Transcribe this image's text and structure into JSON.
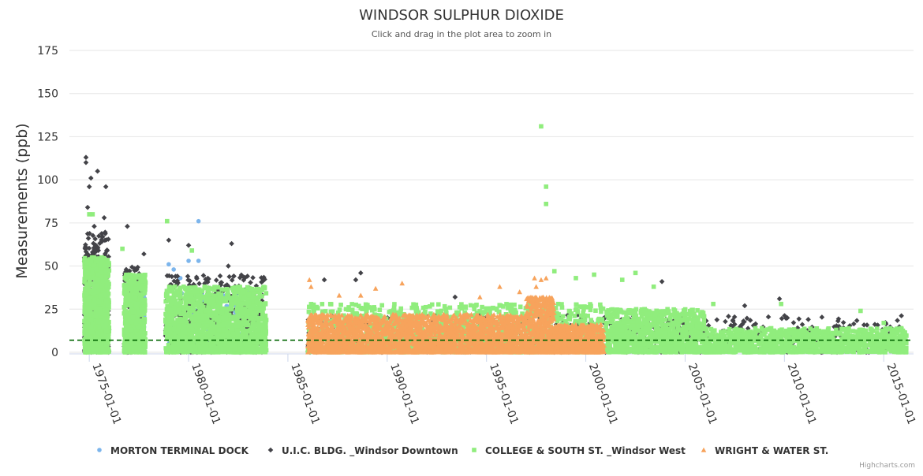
{
  "chart_data": {
    "type": "scatter",
    "title": "WINDSOR SULPHUR DIOXIDE",
    "subtitle": "Click and drag in the plot area to zoom in",
    "ylabel": "Measurements (ppb)",
    "xlabel": "",
    "ylim": [
      0,
      175
    ],
    "yticks": [
      0,
      25,
      50,
      75,
      100,
      125,
      150,
      175
    ],
    "xlim": [
      "1974-01-01",
      "2016-07-01"
    ],
    "xticks": [
      "1975-01-01",
      "1980-01-01",
      "1985-01-01",
      "1990-01-01",
      "1995-01-01",
      "2000-01-01",
      "2005-01-01",
      "2010-01-01",
      "2015-01-01"
    ],
    "grid": true,
    "legend_position": "bottom",
    "reference_line": {
      "value": 7,
      "style": "dashed",
      "color": "#006400"
    },
    "series": [
      {
        "name": "MORTON TERMINAL DOCK",
        "color": "#7cb5ec",
        "marker": "circle",
        "notable_points": [
          {
            "x": "1979-01-01",
            "y": 51
          },
          {
            "x": "1979-04-01",
            "y": 48
          },
          {
            "x": "1979-08-01",
            "y": 43
          },
          {
            "x": "1980-01-01",
            "y": 53
          },
          {
            "x": "1980-07-01",
            "y": 76
          },
          {
            "x": "1980-07-01",
            "y": 53
          },
          {
            "x": "1977-06-01",
            "y": 44
          },
          {
            "x": "1975-08-01",
            "y": 42
          },
          {
            "x": "1982-01-01",
            "y": 30
          },
          {
            "x": "1979-06-01",
            "y": 24
          }
        ],
        "bands": [
          {
            "from": "1977-07-01",
            "to": "1977-11-01",
            "max": 38,
            "density": 60
          },
          {
            "from": "1979-01-01",
            "to": "1983-01-01",
            "max": 36,
            "density": 220
          }
        ]
      },
      {
        "name": "U.I.C. BLDG. _Windsor Downtown",
        "color": "#434348",
        "marker": "diamond",
        "notable_points": [
          {
            "x": "1974-11-01",
            "y": 113
          },
          {
            "x": "1974-11-01",
            "y": 110
          },
          {
            "x": "1975-01-01",
            "y": 96
          },
          {
            "x": "1975-02-01",
            "y": 101
          },
          {
            "x": "1975-06-01",
            "y": 105
          },
          {
            "x": "1975-11-01",
            "y": 96
          },
          {
            "x": "1974-12-01",
            "y": 84
          },
          {
            "x": "1975-10-01",
            "y": 78
          },
          {
            "x": "1975-04-01",
            "y": 73
          },
          {
            "x": "1976-12-01",
            "y": 73
          },
          {
            "x": "1977-10-01",
            "y": 57
          },
          {
            "x": "1979-01-01",
            "y": 65
          },
          {
            "x": "1980-01-01",
            "y": 62
          },
          {
            "x": "1982-03-01",
            "y": 63
          },
          {
            "x": "1982-01-01",
            "y": 50
          },
          {
            "x": "1988-09-01",
            "y": 46
          },
          {
            "x": "1988-06-01",
            "y": 42
          },
          {
            "x": "1986-11-01",
            "y": 42
          },
          {
            "x": "2003-11-01",
            "y": 41
          },
          {
            "x": "1993-06-01",
            "y": 32
          },
          {
            "x": "2009-10-01",
            "y": 31
          },
          {
            "x": "2008-01-01",
            "y": 27
          }
        ],
        "bands": [
          {
            "from": "1974-10-01",
            "to": "1976-01-01",
            "max": 70,
            "density": 300
          },
          {
            "from": "1976-10-01",
            "to": "1977-10-01",
            "max": 50,
            "density": 150
          },
          {
            "from": "1978-11-01",
            "to": "1983-12-01",
            "max": 45,
            "density": 450
          },
          {
            "from": "1986-01-01",
            "to": "2015-12-01",
            "max": 22,
            "density": 700
          }
        ]
      },
      {
        "name": "COLLEGE & SOUTH ST. _Windsor West",
        "color": "#90ed7d",
        "marker": "square",
        "notable_points": [
          {
            "x": "1997-10-01",
            "y": 131
          },
          {
            "x": "1998-01-01",
            "y": 96
          },
          {
            "x": "1998-01-01",
            "y": 86
          },
          {
            "x": "1975-03-01",
            "y": 80
          },
          {
            "x": "1975-01-01",
            "y": 80
          },
          {
            "x": "1978-12-01",
            "y": 76
          },
          {
            "x": "1976-09-01",
            "y": 60
          },
          {
            "x": "1980-03-01",
            "y": 59
          },
          {
            "x": "1998-06-01",
            "y": 47
          },
          {
            "x": "2002-07-01",
            "y": 46
          },
          {
            "x": "2000-06-01",
            "y": 45
          },
          {
            "x": "1999-07-01",
            "y": 43
          },
          {
            "x": "2001-11-01",
            "y": 42
          },
          {
            "x": "2003-06-01",
            "y": 38
          },
          {
            "x": "2006-06-01",
            "y": 28
          },
          {
            "x": "2009-11-01",
            "y": 28
          },
          {
            "x": "2013-11-01",
            "y": 24
          },
          {
            "x": "2015-01-01",
            "y": 17
          }
        ],
        "bands": [
          {
            "from": "1974-10-01",
            "to": "1976-01-01",
            "max": 55,
            "density": 900
          },
          {
            "from": "1976-10-01",
            "to": "1977-11-01",
            "max": 45,
            "density": 550
          },
          {
            "from": "1978-11-01",
            "to": "1983-12-01",
            "max": 38,
            "density": 1400
          },
          {
            "from": "1986-01-01",
            "to": "2000-12-01",
            "max": 28,
            "density": 1300
          },
          {
            "from": "2001-01-01",
            "to": "2006-01-01",
            "max": 25,
            "density": 900
          },
          {
            "from": "2006-01-01",
            "to": "2016-03-01",
            "max": 14,
            "density": 1100
          }
        ]
      },
      {
        "name": "WRIGHT & WATER ST.",
        "color": "#f7a35c",
        "marker": "triangle",
        "notable_points": [
          {
            "x": "1986-02-01",
            "y": 42
          },
          {
            "x": "1986-03-01",
            "y": 38
          },
          {
            "x": "1987-08-01",
            "y": 33
          },
          {
            "x": "1988-09-01",
            "y": 33
          },
          {
            "x": "1989-06-01",
            "y": 37
          },
          {
            "x": "1990-10-01",
            "y": 40
          },
          {
            "x": "1994-09-01",
            "y": 32
          },
          {
            "x": "1995-09-01",
            "y": 38
          },
          {
            "x": "1996-09-01",
            "y": 35
          },
          {
            "x": "1997-07-01",
            "y": 38
          },
          {
            "x": "1997-10-01",
            "y": 42
          },
          {
            "x": "1998-01-01",
            "y": 43
          },
          {
            "x": "1997-06-01",
            "y": 43
          }
        ],
        "bands": [
          {
            "from": "1986-01-01",
            "to": "1997-01-01",
            "max": 22,
            "density": 2600
          },
          {
            "from": "1997-01-01",
            "to": "1998-06-01",
            "max": 32,
            "density": 500
          },
          {
            "from": "1998-06-01",
            "to": "2000-12-01",
            "max": 16,
            "density": 700
          }
        ]
      }
    ]
  },
  "credits": "Highcharts.com"
}
